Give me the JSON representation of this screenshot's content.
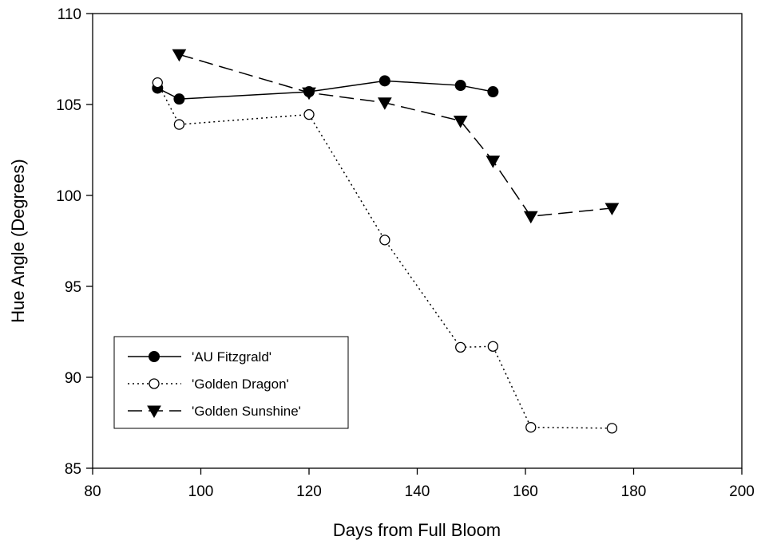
{
  "chart_data": {
    "type": "line",
    "title": "",
    "xlabel": "Days from Full Bloom",
    "ylabel": "Hue Angle (Degrees)",
    "xlim": [
      80,
      200
    ],
    "ylim": [
      85,
      110
    ],
    "x_ticks": [
      "80",
      "100",
      "120",
      "140",
      "160",
      "180",
      "200"
    ],
    "y_ticks": [
      "85",
      "90",
      "95",
      "100",
      "105",
      "110"
    ],
    "grid": false,
    "legend_position": "bottom-left",
    "series": [
      {
        "name": "'AU Fitzgrald'",
        "marker": "filled-circle",
        "line_style": "solid",
        "color": "#000000",
        "x": [
          92,
          96,
          120,
          134,
          148,
          154
        ],
        "y": [
          105.9,
          105.3,
          105.7,
          106.3,
          106.05,
          105.7
        ]
      },
      {
        "name": "'Golden Dragon'",
        "marker": "open-circle",
        "line_style": "dotted",
        "color": "#000000",
        "x": [
          92,
          96,
          120,
          134,
          148,
          154,
          161,
          176
        ],
        "y": [
          106.2,
          103.9,
          104.45,
          97.55,
          91.65,
          91.7,
          87.25,
          87.2
        ]
      },
      {
        "name": "'Golden Sunshine'",
        "marker": "filled-triangle-down",
        "line_style": "dashed",
        "color": "#000000",
        "x": [
          96,
          120,
          134,
          148,
          154,
          161,
          176
        ],
        "y": [
          107.75,
          105.65,
          105.1,
          104.1,
          101.9,
          98.85,
          99.3
        ]
      }
    ]
  }
}
